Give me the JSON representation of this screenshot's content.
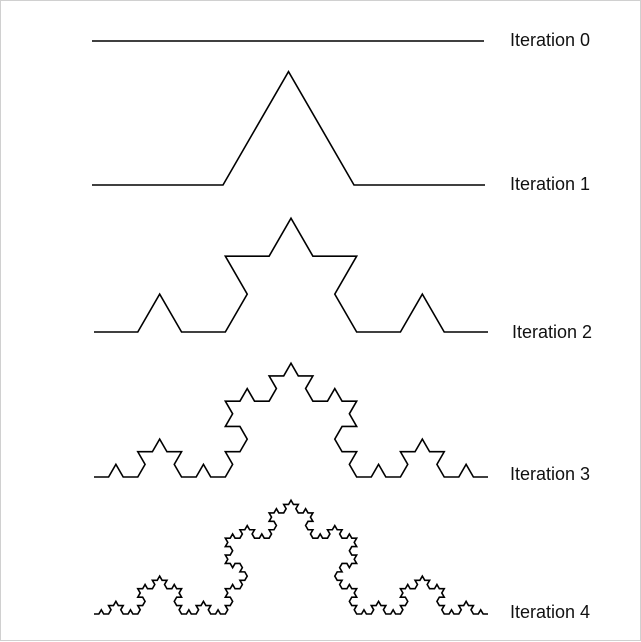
{
  "figure": {
    "stroke_color": "#000000",
    "background_color": "#ffffff",
    "iterations": [
      {
        "depth": 0,
        "label": "Iteration 0"
      },
      {
        "depth": 1,
        "label": "Iteration 1"
      },
      {
        "depth": 2,
        "label": "Iteration 2"
      },
      {
        "depth": 3,
        "label": "Iteration 3"
      },
      {
        "depth": 4,
        "label": "Iteration 4"
      }
    ]
  }
}
